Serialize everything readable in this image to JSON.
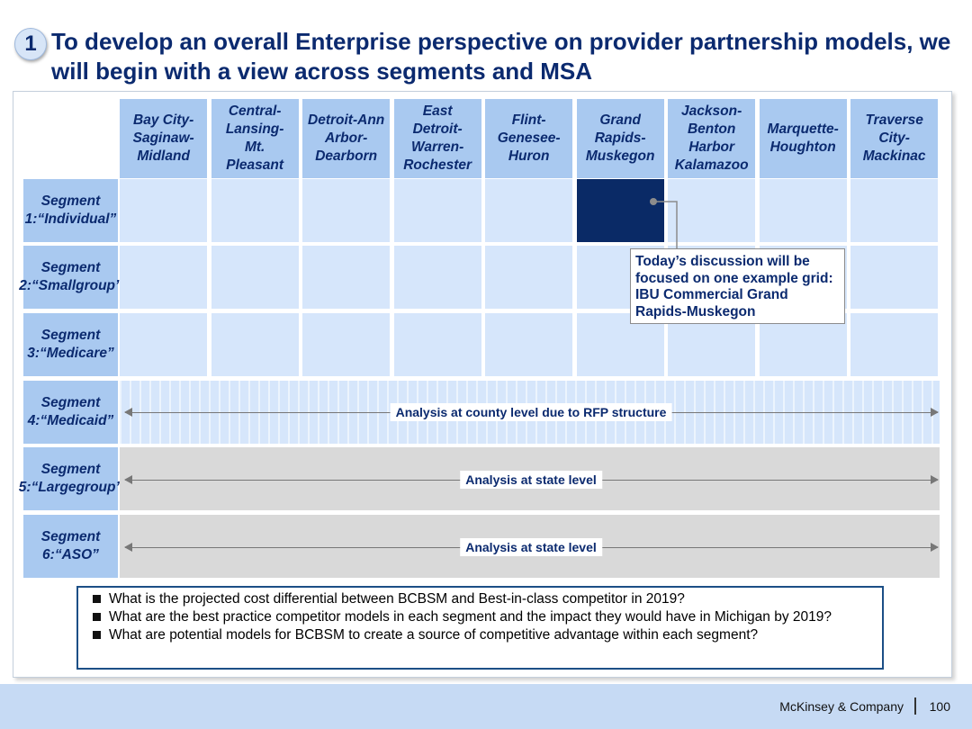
{
  "title": {
    "number": "1",
    "text": "To develop an overall Enterprise perspective on provider partnership models, we will begin with a view across segments and MSA"
  },
  "columns": [
    {
      "lines": [
        "Bay City-",
        "Saginaw-",
        "Midland"
      ]
    },
    {
      "lines": [
        "Central-",
        "Lansing-",
        "Mt.",
        "Pleasant"
      ]
    },
    {
      "lines": [
        "Detroit-Ann",
        "Arbor-",
        "Dearborn"
      ]
    },
    {
      "lines": [
        "East",
        "Detroit-",
        "Warren-",
        "Rochester"
      ]
    },
    {
      "lines": [
        "Flint-",
        "Genesee-",
        "Huron"
      ]
    },
    {
      "lines": [
        "Grand",
        "Rapids-",
        "Muskegon"
      ]
    },
    {
      "lines": [
        "Jackson-",
        "Benton",
        "Harbor",
        "Kalamazoo"
      ]
    },
    {
      "lines": [
        "Marquette-",
        "Houghton"
      ]
    },
    {
      "lines": [
        "Traverse",
        "City-",
        "Mackinac"
      ]
    }
  ],
  "segments": [
    {
      "lines": [
        "Segment 1:",
        "“Individual”"
      ]
    },
    {
      "lines": [
        "Segment 2:",
        "“Small",
        "group”"
      ]
    },
    {
      "lines": [
        "Segment 3:",
        "“Medicare”"
      ]
    },
    {
      "lines": [
        "Segment 4:",
        "“Medicaid”"
      ]
    },
    {
      "lines": [
        "Segment 5:",
        "“Large",
        "group”"
      ]
    },
    {
      "lines": [
        "Segment 6:",
        "“ASO”"
      ]
    }
  ],
  "highlight": {
    "segment_index": 0,
    "column_index": 5
  },
  "callout": {
    "text": "Today’s discussion  will be focused on one example grid: IBU Commercial Grand Rapids-Muskegon"
  },
  "bands": {
    "medicaid": "Analysis at county level due to RFP structure",
    "large_group": "Analysis at state level",
    "aso": "Analysis at state level"
  },
  "questions": [
    "What is the projected cost differential between BCBSM and Best-in-class competitor in 2019?",
    "What are the best practice competitor models in each segment and the impact they would have in Michigan by 2019?",
    "What are potential models for BCBSM to create  a source of competitive advantage within each segment?"
  ],
  "footer": {
    "company": "McKinsey & Company",
    "page": "100"
  },
  "colors": {
    "navy": "#0b2a6f",
    "header_blue": "#a9c9f0",
    "cell_blue": "#d6e6fb",
    "highlight": "#0a2a66",
    "gray_band": "#d9d9d9",
    "footer_blue": "#c6daf4"
  }
}
